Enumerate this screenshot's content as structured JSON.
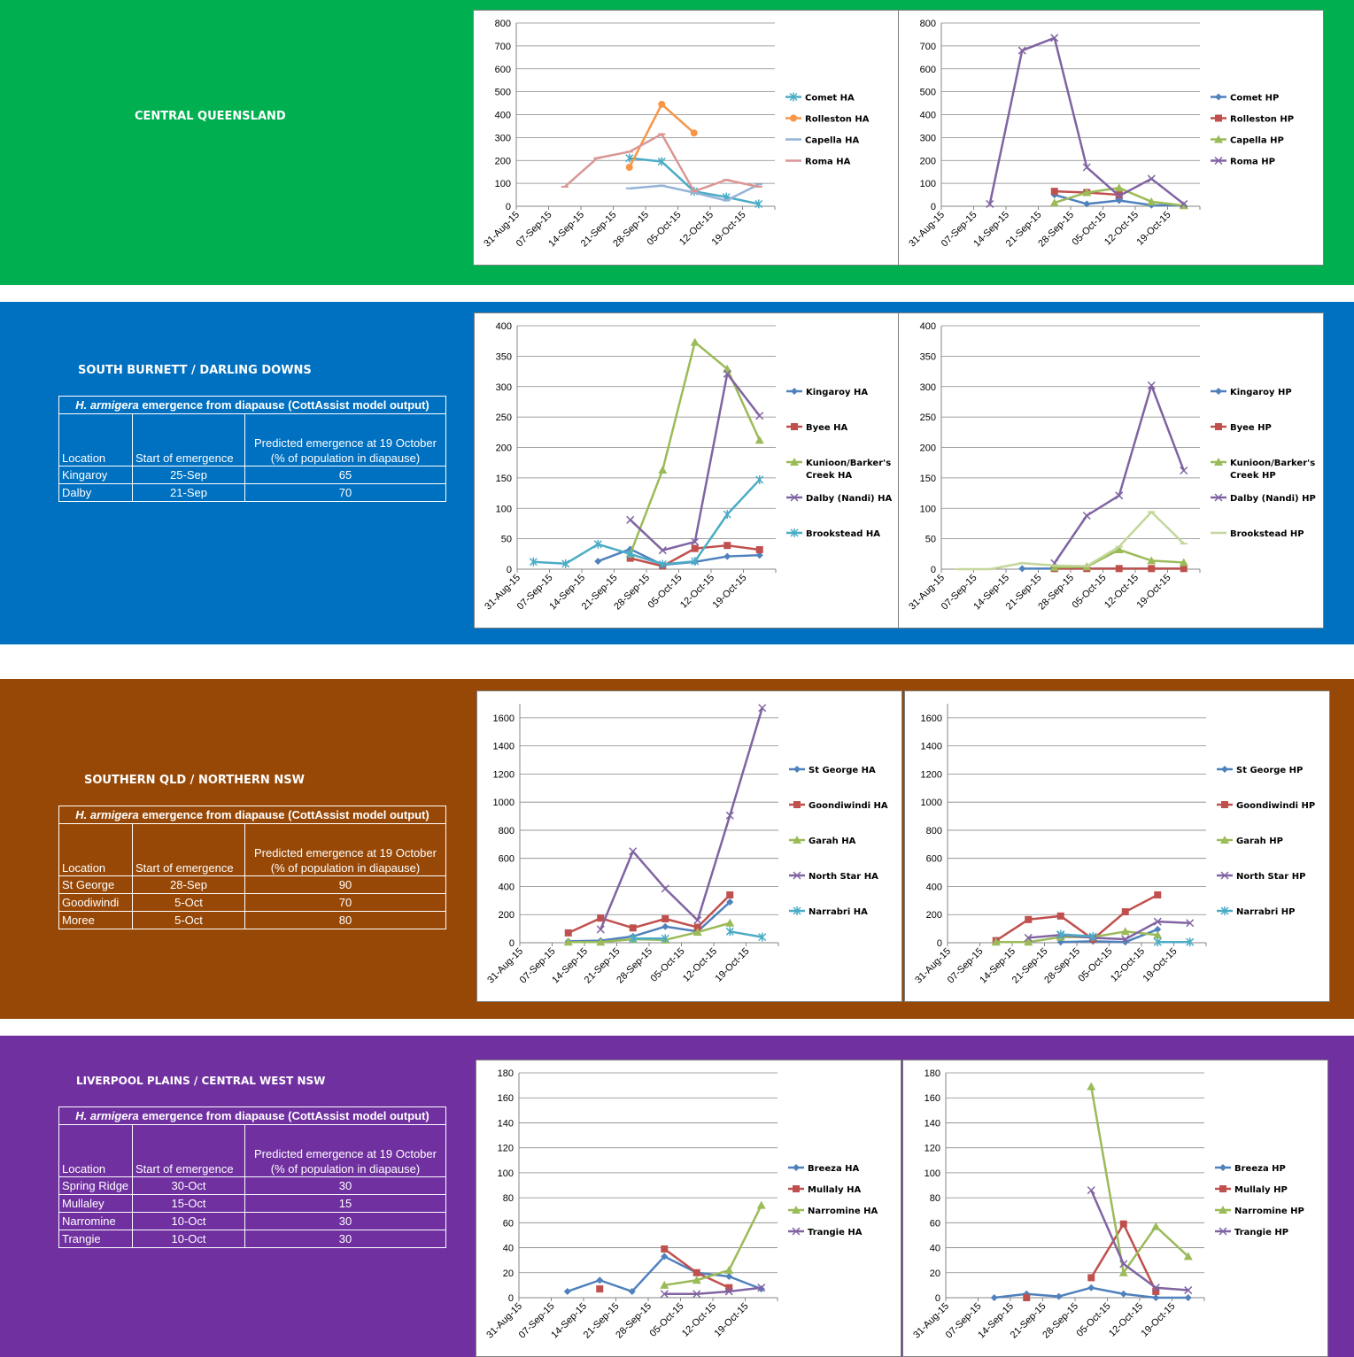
{
  "bands": [
    {
      "id": "central-qld",
      "color": "#00b050",
      "title": "CENTRAL QUEENSLAND",
      "table": null
    },
    {
      "id": "south-burnett",
      "color": "#0070c0",
      "title": "SOUTH BURNETT / DARLING DOWNS",
      "table": {
        "caption_italic": "H. armigera",
        "caption_rest": "emergence from diapause (CottAssist model output)",
        "headers": [
          "Location",
          "Start of emergence",
          "Predicted emergence at 19 October (% of population in diapause)"
        ],
        "rows": [
          [
            "Kingaroy",
            "25-Sep",
            "65"
          ],
          [
            "Dalby",
            "21-Sep",
            "70"
          ]
        ]
      }
    },
    {
      "id": "southern-qld",
      "color": "#974806",
      "title": "SOUTHERN QLD / NORTHERN NSW",
      "table": {
        "caption_italic": "H. armigera",
        "caption_rest": "emergence from diapause (CottAssist model output)",
        "headers": [
          "Location",
          "Start of emergence",
          "Predicted emergence at 19 October (% of population in diapause)"
        ],
        "rows": [
          [
            "St George",
            "28-Sep",
            "90"
          ],
          [
            "Goodiwindi",
            "5-Oct",
            "70"
          ],
          [
            "Moree",
            "5-Oct",
            "80"
          ]
        ]
      }
    },
    {
      "id": "liverpool",
      "color": "#7030a0",
      "title": "LIVERPOOL PLAINS / CENTRAL WEST NSW",
      "table": {
        "caption_italic": "H. armigera",
        "caption_rest": "emergence from diapause (CottAssist model output)",
        "headers": [
          "Location",
          "Start of emergence",
          "Predicted emergence at 19 October (% of population in diapause)"
        ],
        "rows": [
          [
            "Spring Ridge",
            "30-Oct",
            "30"
          ],
          [
            "Mullaley",
            "15-Oct",
            "15"
          ],
          [
            "Narromine",
            "10-Oct",
            "30"
          ],
          [
            "Trangie",
            "10-Oct",
            "30"
          ]
        ]
      }
    }
  ],
  "chart_data": [
    {
      "id": "cq-ha",
      "type": "line",
      "categories": [
        "31-Aug-15",
        "07-Sep-15",
        "14-Sep-15",
        "21-Sep-15",
        "28-Sep-15",
        "05-Oct-15",
        "12-Oct-15",
        "19-Oct-15"
      ],
      "ylim": [
        0,
        800
      ],
      "yticks": [
        0,
        100,
        200,
        300,
        400,
        500,
        600,
        700,
        800
      ],
      "series": [
        {
          "name": "Comet HA",
          "color": "#4bacc6",
          "marker": "star",
          "values": [
            null,
            null,
            null,
            210,
            195,
            65,
            40,
            10
          ]
        },
        {
          "name": "Rolleston HA",
          "color": "#f79646",
          "marker": "circle",
          "values": [
            null,
            null,
            null,
            170,
            445,
            320,
            null,
            null
          ]
        },
        {
          "name": "Capella HA",
          "color": "#95b3d7",
          "marker": "dash",
          "values": [
            null,
            null,
            null,
            78,
            90,
            60,
            25,
            95
          ]
        },
        {
          "name": "Roma HA",
          "color": "#d99694",
          "marker": "dash",
          "values": [
            null,
            85,
            210,
            238,
            315,
            65,
            115,
            85
          ]
        }
      ]
    },
    {
      "id": "cq-hp",
      "type": "line",
      "categories": [
        "31-Aug-15",
        "07-Sep-15",
        "14-Sep-15",
        "21-Sep-15",
        "28-Sep-15",
        "05-Oct-15",
        "12-Oct-15",
        "19-Oct-15"
      ],
      "ylim": [
        0,
        800
      ],
      "yticks": [
        0,
        100,
        200,
        300,
        400,
        500,
        600,
        700,
        800
      ],
      "series": [
        {
          "name": "Comet HP",
          "color": "#4f81bd",
          "marker": "diamond",
          "values": [
            null,
            null,
            null,
            50,
            10,
            25,
            5,
            3
          ]
        },
        {
          "name": "Rolleston HP",
          "color": "#c0504d",
          "marker": "square",
          "values": [
            null,
            null,
            null,
            65,
            60,
            50,
            null,
            null
          ]
        },
        {
          "name": "Capella HP",
          "color": "#9bbb59",
          "marker": "triangle",
          "values": [
            null,
            null,
            null,
            15,
            60,
            80,
            20,
            3
          ]
        },
        {
          "name": "Roma HP",
          "color": "#8064a2",
          "marker": "x",
          "values": [
            null,
            10,
            680,
            735,
            170,
            45,
            120,
            10
          ]
        }
      ]
    },
    {
      "id": "sb-ha",
      "type": "line",
      "categories": [
        "31-Aug-15",
        "07-Sep-15",
        "14-Sep-15",
        "21-Sep-15",
        "28-Sep-15",
        "05-Oct-15",
        "12-Oct-15",
        "19-Oct-15"
      ],
      "ylim": [
        0,
        400
      ],
      "yticks": [
        0,
        50,
        100,
        150,
        200,
        250,
        300,
        350,
        400
      ],
      "series": [
        {
          "name": "Kingaroy HA",
          "color": "#4f81bd",
          "marker": "diamond",
          "values": [
            null,
            null,
            13,
            33,
            7,
            12,
            21,
            23
          ]
        },
        {
          "name": "Byee HA",
          "color": "#c0504d",
          "marker": "square",
          "values": [
            null,
            null,
            null,
            18,
            5,
            34,
            39,
            32
          ]
        },
        {
          "name": "Kunioon/Barker's Creek HA",
          "color": "#9bbb59",
          "marker": "triangle",
          "values": [
            null,
            null,
            null,
            25,
            163,
            373,
            329,
            212
          ]
        },
        {
          "name": "Dalby (Nandi) HA",
          "color": "#8064a2",
          "marker": "x",
          "values": [
            null,
            null,
            null,
            81,
            31,
            45,
            321,
            252
          ]
        },
        {
          "name": "Brookstead HA",
          "color": "#4bacc6",
          "marker": "star",
          "values": [
            12,
            9,
            41,
            25,
            8,
            13,
            90,
            147
          ]
        }
      ]
    },
    {
      "id": "sb-hp",
      "type": "line",
      "categories": [
        "31-Aug-15",
        "07-Sep-15",
        "14-Sep-15",
        "21-Sep-15",
        "28-Sep-15",
        "05-Oct-15",
        "12-Oct-15",
        "19-Oct-15"
      ],
      "ylim": [
        0,
        400
      ],
      "yticks": [
        0,
        50,
        100,
        150,
        200,
        250,
        300,
        350,
        400
      ],
      "series": [
        {
          "name": "Kingaroy HP",
          "color": "#4f81bd",
          "marker": "diamond",
          "values": [
            null,
            null,
            1,
            1,
            1,
            1,
            1,
            1
          ]
        },
        {
          "name": "Byee HP",
          "color": "#c0504d",
          "marker": "square",
          "values": [
            null,
            null,
            null,
            1,
            1,
            1,
            1,
            1
          ]
        },
        {
          "name": "Kunioon/Barker's Creek HP",
          "color": "#9bbb59",
          "marker": "triangle",
          "values": [
            null,
            null,
            null,
            3,
            4,
            32,
            14,
            11
          ]
        },
        {
          "name": "Dalby (Nandi) HP",
          "color": "#8064a2",
          "marker": "x",
          "values": [
            null,
            null,
            null,
            10,
            88,
            121,
            302,
            162
          ]
        },
        {
          "name": "Brookstead HP",
          "color": "#c3d69b",
          "marker": "dash",
          "values": [
            0,
            0,
            10,
            6,
            5,
            37,
            94,
            42
          ]
        }
      ]
    },
    {
      "id": "sq-ha",
      "type": "line",
      "categories": [
        "31-Aug-15",
        "07-Sep-15",
        "14-Sep-15",
        "21-Sep-15",
        "28-Sep-15",
        "05-Oct-15",
        "12-Oct-15",
        "19-Oct-15"
      ],
      "ylim": [
        0,
        1700
      ],
      "yticks": [
        0,
        200,
        400,
        600,
        800,
        1000,
        1200,
        1400,
        1600
      ],
      "series": [
        {
          "name": "St George HA",
          "color": "#4f81bd",
          "marker": "diamond",
          "values": [
            null,
            10,
            15,
            45,
            115,
            80,
            290,
            null
          ]
        },
        {
          "name": "Goondiwindi HA",
          "color": "#c0504d",
          "marker": "square",
          "values": [
            null,
            70,
            175,
            105,
            170,
            110,
            340,
            null
          ]
        },
        {
          "name": "Garah HA",
          "color": "#9bbb59",
          "marker": "triangle",
          "values": [
            null,
            5,
            5,
            25,
            20,
            75,
            140,
            null
          ]
        },
        {
          "name": "North Star HA",
          "color": "#8064a2",
          "marker": "x",
          "values": [
            null,
            null,
            95,
            650,
            385,
            160,
            905,
            1670
          ]
        },
        {
          "name": "Narrabri HA",
          "color": "#4bacc6",
          "marker": "star",
          "values": [
            null,
            null,
            null,
            30,
            30,
            null,
            80,
            40
          ]
        }
      ]
    },
    {
      "id": "sq-hp",
      "type": "line",
      "categories": [
        "31-Aug-15",
        "07-Sep-15",
        "14-Sep-15",
        "21-Sep-15",
        "28-Sep-15",
        "05-Oct-15",
        "12-Oct-15",
        "19-Oct-15"
      ],
      "ylim": [
        0,
        1700
      ],
      "yticks": [
        0,
        200,
        400,
        600,
        800,
        1000,
        1200,
        1400,
        1600
      ],
      "series": [
        {
          "name": "St George HP",
          "color": "#4f81bd",
          "marker": "diamond",
          "values": [
            null,
            null,
            null,
            5,
            10,
            5,
            95,
            null
          ]
        },
        {
          "name": "Goondiwindi HP",
          "color": "#c0504d",
          "marker": "square",
          "values": [
            null,
            15,
            165,
            190,
            25,
            220,
            340,
            null
          ]
        },
        {
          "name": "Garah HP",
          "color": "#9bbb59",
          "marker": "triangle",
          "values": [
            null,
            5,
            5,
            40,
            40,
            80,
            55,
            null
          ]
        },
        {
          "name": "North Star HP",
          "color": "#8064a2",
          "marker": "x",
          "values": [
            null,
            null,
            35,
            55,
            35,
            25,
            150,
            140
          ]
        },
        {
          "name": "Narrabri HP",
          "color": "#4bacc6",
          "marker": "star",
          "values": [
            null,
            null,
            null,
            60,
            45,
            null,
            5,
            5
          ]
        }
      ]
    },
    {
      "id": "lp-ha",
      "type": "line",
      "categories": [
        "31-Aug-15",
        "07-Sep-15",
        "14-Sep-15",
        "21-Sep-15",
        "28-Sep-15",
        "05-Oct-15",
        "12-Oct-15",
        "19-Oct-15"
      ],
      "ylim": [
        0,
        180
      ],
      "yticks": [
        0,
        20,
        40,
        60,
        80,
        100,
        120,
        140,
        160,
        180
      ],
      "series": [
        {
          "name": "Breeza HA",
          "color": "#4f81bd",
          "marker": "diamond",
          "values": [
            null,
            5,
            14,
            5,
            33,
            20,
            17,
            7
          ]
        },
        {
          "name": "Mullaly HA",
          "color": "#c0504d",
          "marker": "square",
          "values": [
            null,
            null,
            7,
            null,
            39,
            20,
            8,
            null
          ]
        },
        {
          "name": "Narromine HA",
          "color": "#9bbb59",
          "marker": "triangle",
          "values": [
            null,
            null,
            null,
            null,
            10,
            14,
            22,
            74
          ]
        },
        {
          "name": "Trangie HA",
          "color": "#8064a2",
          "marker": "x",
          "values": [
            null,
            null,
            null,
            null,
            3,
            3,
            5,
            8
          ]
        }
      ]
    },
    {
      "id": "lp-hp",
      "type": "line",
      "categories": [
        "31-Aug-15",
        "07-Sep-15",
        "14-Sep-15",
        "21-Sep-15",
        "28-Sep-15",
        "05-Oct-15",
        "12-Oct-15",
        "19-Oct-15"
      ],
      "ylim": [
        0,
        180
      ],
      "yticks": [
        0,
        20,
        40,
        60,
        80,
        100,
        120,
        140,
        160,
        180
      ],
      "series": [
        {
          "name": "Breeza HP",
          "color": "#4f81bd",
          "marker": "diamond",
          "values": [
            null,
            0,
            3,
            1,
            8,
            3,
            0,
            0
          ]
        },
        {
          "name": "Mullaly HP",
          "color": "#c0504d",
          "marker": "square",
          "values": [
            null,
            null,
            0,
            null,
            16,
            59,
            5,
            null
          ]
        },
        {
          "name": "Narromine HP",
          "color": "#9bbb59",
          "marker": "triangle",
          "values": [
            null,
            null,
            null,
            null,
            169,
            20,
            57,
            33
          ]
        },
        {
          "name": "Trangie HP",
          "color": "#8064a2",
          "marker": "x",
          "values": [
            null,
            null,
            null,
            null,
            86,
            27,
            8,
            6
          ]
        }
      ]
    }
  ]
}
